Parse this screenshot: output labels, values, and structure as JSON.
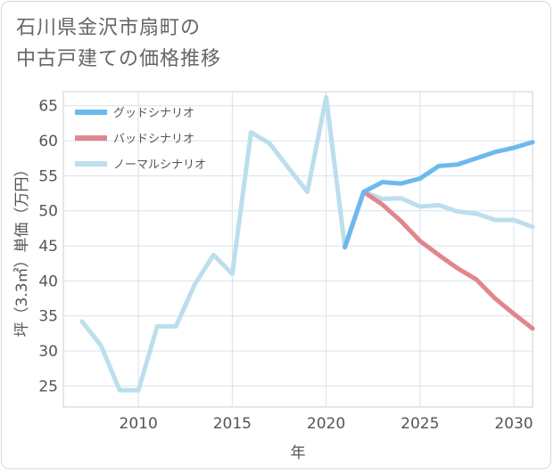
{
  "title": {
    "line1": "石川県金沢市扇町の",
    "line2": "中古戸建ての価格推移"
  },
  "chart_data": {
    "type": "line",
    "xlabel": "年",
    "ylabel": "坪（3.3㎡）単価（万円）",
    "xlim": [
      2006,
      2031
    ],
    "ylim": [
      22,
      67
    ],
    "xticks": [
      2010,
      2015,
      2020,
      2025,
      2030
    ],
    "yticks": [
      25,
      30,
      35,
      40,
      45,
      50,
      55,
      60,
      65
    ],
    "grid": true,
    "legend_position": "top-left",
    "series": [
      {
        "name": "グッドシナリオ",
        "color": "#6cb9ee",
        "x": [
          2021,
          2022,
          2023,
          2024,
          2025,
          2026,
          2027,
          2028,
          2029,
          2030,
          2031
        ],
        "values": [
          44.8,
          52.7,
          54.1,
          53.9,
          54.6,
          56.4,
          56.6,
          57.5,
          58.4,
          59.0,
          59.8
        ]
      },
      {
        "name": "バッドシナリオ",
        "color": "#e0868f",
        "x": [
          2021,
          2022,
          2023,
          2024,
          2025,
          2026,
          2027,
          2028,
          2029,
          2030,
          2031
        ],
        "values": [
          44.8,
          52.7,
          50.9,
          48.5,
          45.7,
          43.7,
          41.8,
          40.2,
          37.5,
          35.3,
          33.2
        ]
      },
      {
        "name": "ノーマルシナリオ",
        "color": "#bcdeed",
        "x": [
          2007,
          2008,
          2009,
          2010,
          2011,
          2012,
          2013,
          2014,
          2015,
          2016,
          2017,
          2018,
          2019,
          2020,
          2021,
          2022,
          2023,
          2024,
          2025,
          2026,
          2027,
          2028,
          2029,
          2030,
          2031
        ],
        "values": [
          34.2,
          30.8,
          24.4,
          24.4,
          33.5,
          33.5,
          39.5,
          43.7,
          41.0,
          61.2,
          59.6,
          56.1,
          52.7,
          66.2,
          44.8,
          52.7,
          51.7,
          51.8,
          50.6,
          50.8,
          49.9,
          49.6,
          48.7,
          48.7,
          47.7
        ]
      }
    ]
  }
}
